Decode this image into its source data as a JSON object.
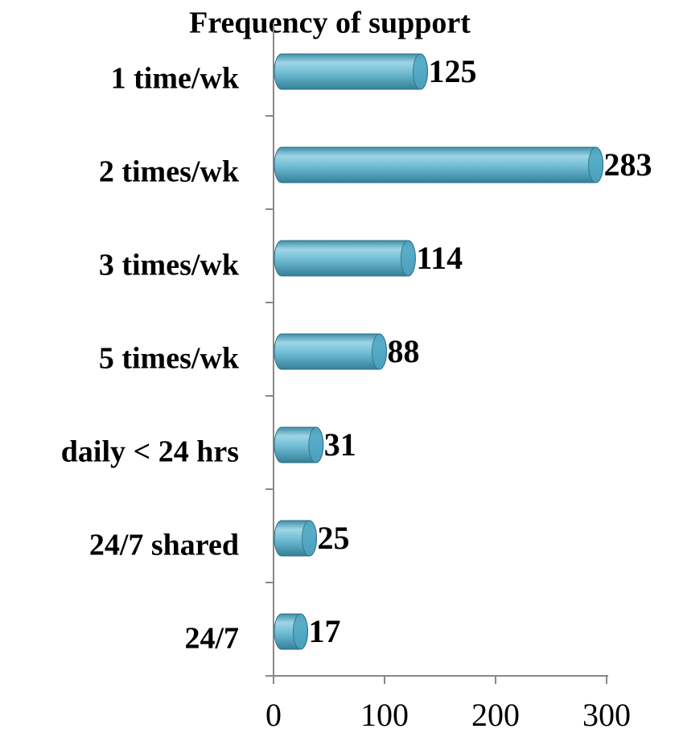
{
  "chart_data": {
    "type": "bar",
    "orientation": "horizontal",
    "title": "Frequency of support",
    "categories": [
      "1 time/wk",
      "2 times/wk",
      "3 times/wk",
      "5 times/wk",
      "daily < 24 hrs",
      "24/7 shared",
      "24/7"
    ],
    "values": [
      125,
      283,
      114,
      88,
      31,
      25,
      17
    ],
    "color": "#4ea6c2",
    "xlim": [
      0,
      300
    ],
    "xticks": [
      0,
      100,
      200,
      300
    ]
  }
}
